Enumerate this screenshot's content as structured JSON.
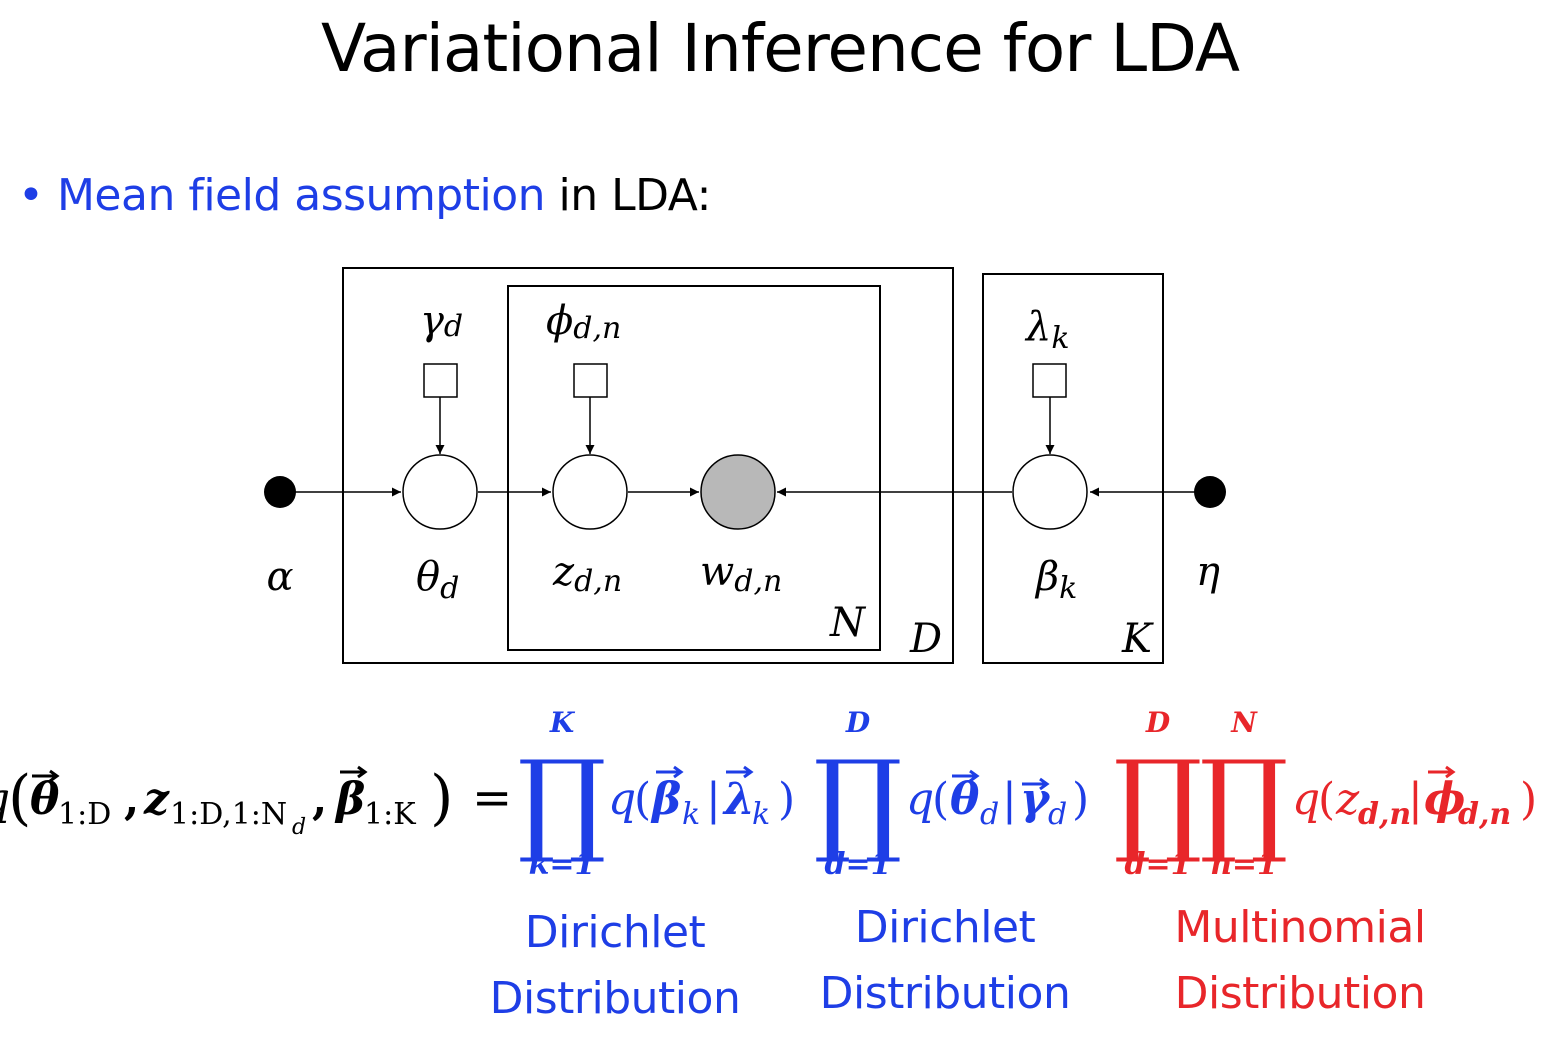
{
  "title": "Variational Inference for LDA",
  "bullet": {
    "marker": "•",
    "highlight": "Mean field assumption",
    "rest": " in LDA:"
  },
  "colors": {
    "blue": "#1e3ee6",
    "red": "#e8262a",
    "observed_fill": "#b8b8b8"
  },
  "diagram": {
    "labels": {
      "alpha": "α",
      "theta": "θ",
      "theta_sub": "d",
      "z": "z",
      "z_sub": "d,n",
      "w": "w",
      "w_sub": "d,n",
      "beta": "β",
      "beta_sub": "k",
      "eta": "η",
      "gamma": "γ",
      "gamma_sub": "d",
      "phi": "ϕ",
      "phi_sub": "d,n",
      "lambda": "λ",
      "lambda_sub": "k"
    },
    "plates": {
      "N": "N",
      "D": "D",
      "K": "K"
    }
  },
  "equation": {
    "lhs_q": "q",
    "lhs_theta": "θ",
    "lhs_theta_sub": "1:D",
    "lhs_z": "z",
    "lhs_z_sub": "1:D,1:N",
    "lhs_z_subsub": "d",
    "lhs_beta": "β",
    "lhs_beta_sub": "1:K",
    "equals": "=",
    "prod_symbol": "∏",
    "factor1": {
      "upper": "K",
      "lower": "k=1",
      "q": "q",
      "var": "β",
      "var_sub": "k",
      "param": "λ",
      "param_sub": "k"
    },
    "factor2": {
      "upper": "D",
      "lower": "d=1",
      "q": "q",
      "var": "θ",
      "var_sub": "d",
      "param": "γ",
      "param_sub": "d"
    },
    "factor3": {
      "upper1": "D",
      "lower1": "d=1",
      "upper2": "N",
      "lower2": "n=1",
      "q": "q",
      "var": "z",
      "var_sub": "d,n",
      "param": "ϕ",
      "param_sub": "d,n"
    }
  },
  "captions": [
    {
      "line1": "Dirichlet",
      "line2": "Distribution"
    },
    {
      "line1": "Dirichlet",
      "line2": "Distribution"
    },
    {
      "line1": "Multinomial",
      "line2": "Distribution"
    }
  ]
}
